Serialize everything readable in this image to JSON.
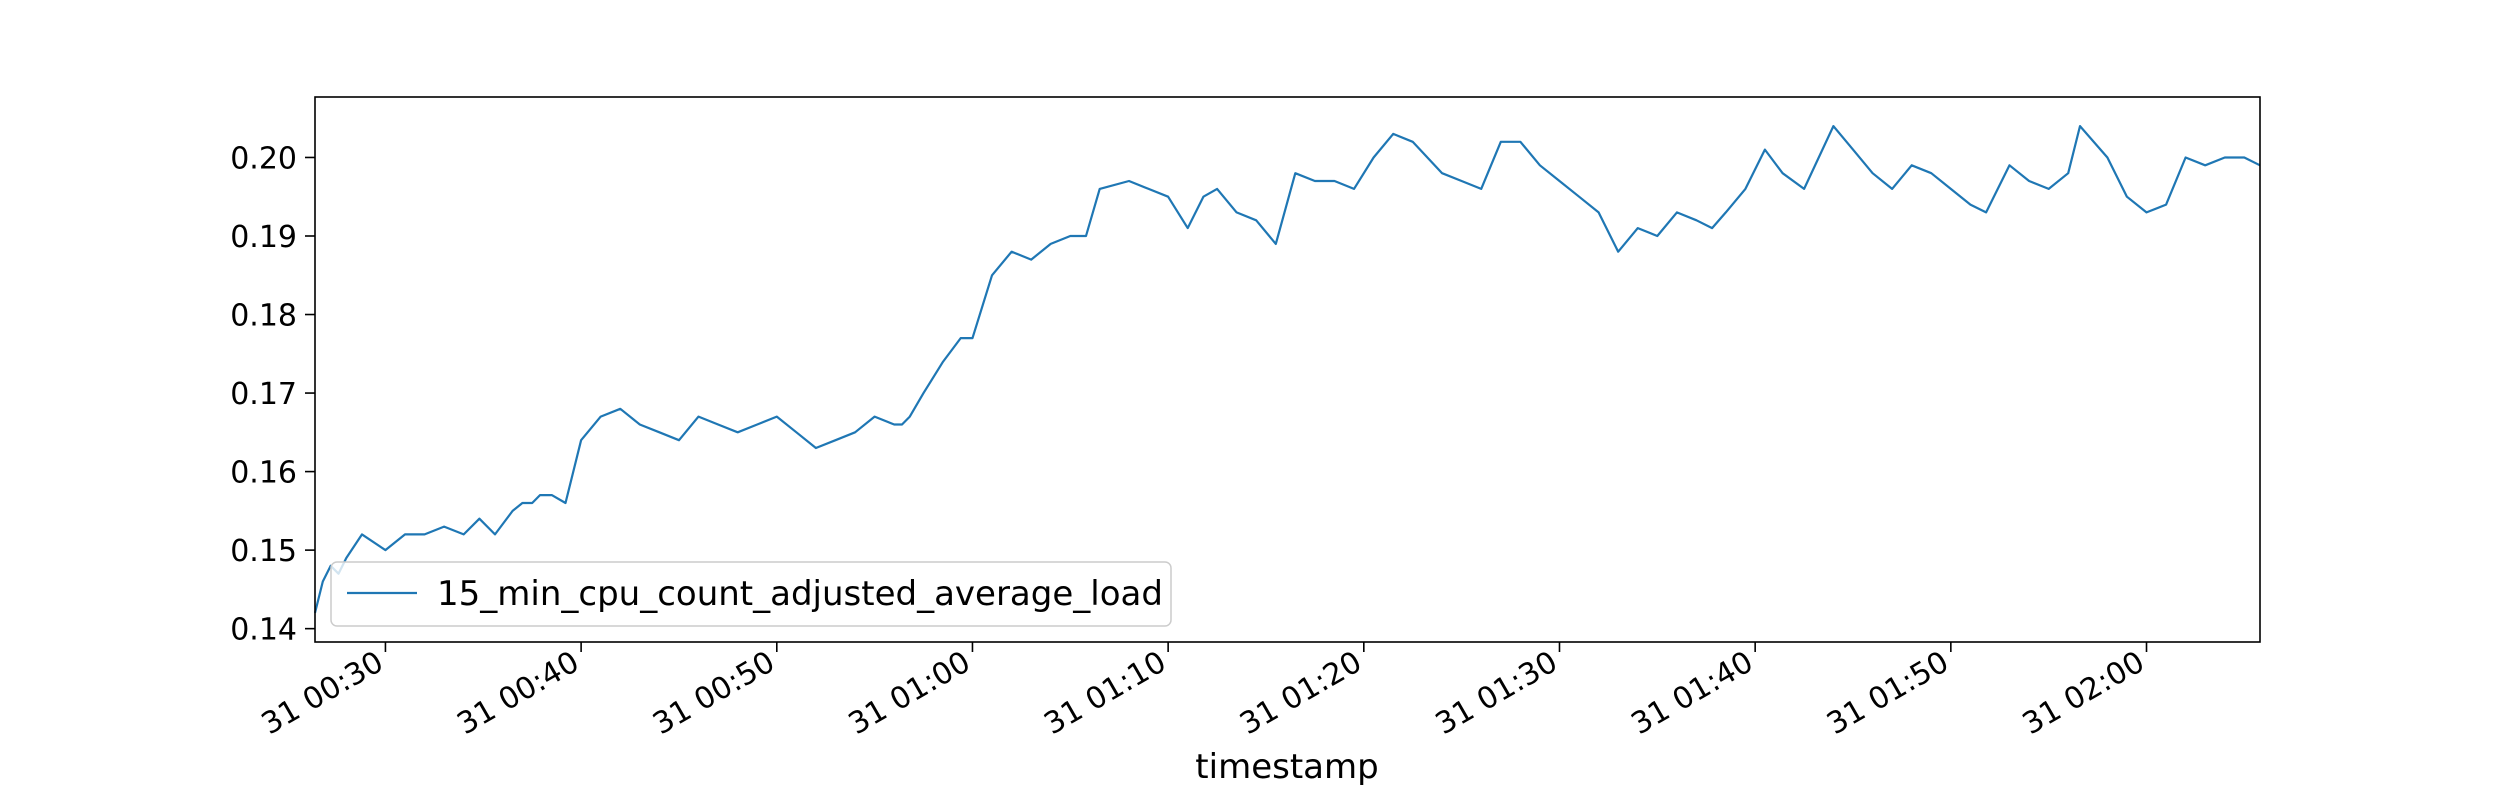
{
  "chart_data": {
    "type": "line",
    "title": "",
    "xlabel": "timestamp",
    "ylabel": "",
    "x_unit": "minutes",
    "xlim": [
      "31 00:26:24",
      "31 02:05:48"
    ],
    "ylim": [
      0.1383,
      0.2077
    ],
    "grid": false,
    "legend_position": "lower-left",
    "x_tick_labels": [
      "31 00:30",
      "31 00:40",
      "31 00:50",
      "31 01:00",
      "31 01:10",
      "31 01:20",
      "31 01:30",
      "31 01:40",
      "31 01:50",
      "31 02:00"
    ],
    "y_ticks": [
      0.14,
      0.15,
      0.16,
      0.17,
      0.18,
      0.19,
      0.2
    ],
    "y_tick_labels": [
      "0.14",
      "0.15",
      "0.16",
      "0.17",
      "0.18",
      "0.19",
      "0.20"
    ],
    "series": [
      {
        "name": "15_min_cpu_count_adjusted_average_load",
        "color": "#1f77b4",
        "x": [
          "31 00:26:24",
          "31 00:26:48",
          "31 00:27:12",
          "31 00:27:36",
          "31 00:28:00",
          "31 00:28:48",
          "31 00:30:00",
          "31 00:31:00",
          "31 00:32:00",
          "31 00:33:00",
          "31 00:34:00",
          "31 00:34:48",
          "31 00:35:36",
          "31 00:36:30",
          "31 00:37:00",
          "31 00:37:30",
          "31 00:37:54",
          "31 00:38:30",
          "31 00:39:12",
          "31 00:40:00",
          "31 00:41:00",
          "31 00:42:00",
          "31 00:43:00",
          "31 00:44:00",
          "31 00:45:00",
          "31 00:46:00",
          "31 00:47:00",
          "31 00:48:00",
          "31 00:49:00",
          "31 00:50:00",
          "31 00:51:00",
          "31 00:52:00",
          "31 00:53:00",
          "31 00:54:00",
          "31 00:55:00",
          "31 00:56:00",
          "31 00:56:24",
          "31 00:56:48",
          "31 00:57:30",
          "31 00:58:30",
          "31 00:59:24",
          "31 01:00:00",
          "31 01:01:00",
          "31 01:02:00",
          "31 01:03:00",
          "31 01:04:00",
          "31 01:05:00",
          "31 01:05:48",
          "31 01:06:30",
          "31 01:08:00",
          "31 01:09:00",
          "31 01:10:00",
          "31 01:11:00",
          "31 01:11:48",
          "31 01:12:30",
          "31 01:13:30",
          "31 01:14:30",
          "31 01:15:30",
          "31 01:16:30",
          "31 01:17:30",
          "31 01:18:30",
          "31 01:19:30",
          "31 01:20:30",
          "31 01:21:30",
          "31 01:22:30",
          "31 01:24:00",
          "31 01:25:00",
          "31 01:26:00",
          "31 01:27:00",
          "31 01:28:00",
          "31 01:29:00",
          "31 01:30:00",
          "31 01:31:00",
          "31 01:32:00",
          "31 01:33:00",
          "31 01:34:00",
          "31 01:35:00",
          "31 01:36:00",
          "31 01:37:00",
          "31 01:37:48",
          "31 01:38:30",
          "31 01:39:30",
          "31 01:40:30",
          "31 01:41:24",
          "31 01:42:30",
          "31 01:44:00",
          "31 01:45:00",
          "31 01:46:00",
          "31 01:47:00",
          "31 01:48:00",
          "31 01:49:00",
          "31 01:50:00",
          "31 01:51:00",
          "31 01:51:48",
          "31 01:53:00",
          "31 01:54:00",
          "31 01:55:00",
          "31 01:56:00",
          "31 01:56:36",
          "31 01:58:00",
          "31 01:59:00",
          "31 02:00:00",
          "31 02:01:00",
          "31 02:02:00",
          "31 02:03:00",
          "31 02:04:00",
          "31 02:04:30",
          "31 02:05:00",
          "31 02:05:48"
        ],
        "y": [
          0.142,
          0.146,
          0.148,
          0.147,
          0.149,
          0.152,
          0.15,
          0.152,
          0.152,
          0.153,
          0.152,
          0.154,
          0.152,
          0.155,
          0.156,
          0.156,
          0.157,
          0.157,
          0.156,
          0.164,
          0.167,
          0.168,
          0.166,
          0.165,
          0.164,
          0.167,
          0.166,
          0.165,
          0.166,
          0.167,
          0.165,
          0.163,
          0.164,
          0.165,
          0.167,
          0.166,
          0.166,
          0.167,
          0.17,
          0.174,
          0.177,
          0.177,
          0.185,
          0.188,
          0.187,
          0.189,
          0.19,
          0.19,
          0.196,
          0.197,
          0.196,
          0.195,
          0.191,
          0.195,
          0.196,
          0.193,
          0.192,
          0.189,
          0.198,
          0.197,
          0.197,
          0.196,
          0.2,
          0.203,
          0.202,
          0.198,
          0.197,
          0.196,
          0.202,
          0.202,
          0.199,
          0.197,
          0.195,
          0.193,
          0.188,
          0.191,
          0.19,
          0.193,
          0.192,
          0.191,
          0.193,
          0.196,
          0.201,
          0.198,
          0.196,
          0.204,
          0.201,
          0.198,
          0.196,
          0.199,
          0.198,
          0.196,
          0.194,
          0.193,
          0.199,
          0.197,
          0.196,
          0.198,
          0.204,
          0.2,
          0.195,
          0.193,
          0.194,
          0.2,
          0.199,
          0.2,
          0.2,
          0.2,
          0.199
        ]
      }
    ]
  }
}
